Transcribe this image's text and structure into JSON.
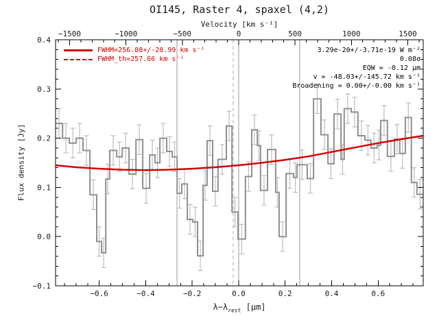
{
  "title": "OI145, Raster 4, spaxel (4,2)",
  "chart_data": {
    "type": "line",
    "style": "stepped histogram spectrum with model fit curve",
    "title": "OI145, Raster 4, spaxel (4,2)",
    "xlabel_parts": {
      "main": "λ−λ",
      "sub": "rest",
      "unit": " [μm]"
    },
    "top_xlabel": "Velocity [km s⁻¹]",
    "ylabel": "Flux density [Jy]",
    "xlim": [
      -0.788,
      0.794
    ],
    "ylim": [
      -0.1,
      0.4
    ],
    "x_ticks": [
      -0.6,
      -0.4,
      -0.2,
      0.0,
      0.2,
      0.4,
      0.6
    ],
    "x_tick_labels": [
      "−0.6",
      "−0.4",
      "−0.2",
      "0.0",
      "0.2",
      "0.4",
      "0.6"
    ],
    "x_minor_step": 0.05,
    "top_ticks_kms": [
      -1500,
      -1000,
      -500,
      0,
      500,
      1000,
      1500
    ],
    "top_tick_labels": [
      "−1500",
      "−1000",
      "−500",
      "0",
      "500",
      "1000",
      "1500"
    ],
    "top_minor_step_kms": 100,
    "kms_per_um": 2061.9,
    "y_ticks": [
      -0.1,
      0.0,
      0.1,
      0.2,
      0.3,
      0.4
    ],
    "y_tick_labels": [
      "−0.1",
      "0.0",
      "0.1",
      "0.2",
      "0.3",
      "0.4"
    ],
    "y_minor_step": 0.02,
    "grid": false,
    "legend_position": "top-left",
    "ref_lines_solid": [
      -0.265,
      0.0,
      0.263
    ],
    "ref_lines_dashed": [
      -0.023
    ],
    "histogram": {
      "bin_edges": [
        -0.788,
        -0.758,
        -0.729,
        -0.699,
        -0.67,
        -0.64,
        -0.611,
        -0.59,
        -0.572,
        -0.555,
        -0.525,
        -0.501,
        -0.472,
        -0.442,
        -0.413,
        -0.383,
        -0.36,
        -0.339,
        -0.31,
        -0.286,
        -0.265,
        -0.245,
        -0.221,
        -0.198,
        -0.177,
        -0.153,
        -0.136,
        -0.112,
        -0.089,
        -0.053,
        -0.029,
        -0.003,
        0.029,
        0.056,
        0.08,
        0.094,
        0.124,
        0.159,
        0.174,
        0.204,
        0.236,
        0.251,
        0.295,
        0.322,
        0.354,
        0.384,
        0.41,
        0.44,
        0.454,
        0.484,
        0.513,
        0.543,
        0.569,
        0.596,
        0.611,
        0.64,
        0.67,
        0.693,
        0.717,
        0.743,
        0.767,
        0.794
      ],
      "flux": [
        0.23,
        0.2,
        0.19,
        0.2,
        0.175,
        0.085,
        -0.01,
        -0.033,
        0.117,
        0.175,
        0.162,
        0.18,
        0.127,
        0.197,
        0.098,
        0.166,
        0.15,
        0.2,
        0.173,
        0.162,
        0.088,
        0.107,
        0.035,
        0.03,
        -0.039,
        0.104,
        0.195,
        0.092,
        0.157,
        0.225,
        0.05,
        -0.005,
        0.122,
        0.217,
        0.185,
        0.094,
        0.177,
        0.09,
        0.0,
        0.128,
        0.12,
        0.146,
        0.118,
        0.28,
        0.207,
        0.148,
        0.249,
        0.157,
        0.26,
        0.253,
        0.205,
        0.196,
        0.18,
        0.186,
        0.236,
        0.163,
        0.198,
        0.169,
        0.242,
        0.11,
        0.086
      ],
      "flux_err": 0.03
    },
    "model_curve": {
      "lambda": [
        -0.788,
        -0.7,
        -0.6,
        -0.5,
        -0.4,
        -0.3,
        -0.2,
        -0.1,
        0.0,
        0.1,
        0.2,
        0.3,
        0.4,
        0.5,
        0.6,
        0.7,
        0.794
      ],
      "flux": [
        0.145,
        0.141,
        0.138,
        0.136,
        0.135,
        0.136,
        0.138,
        0.141,
        0.145,
        0.15,
        0.156,
        0.163,
        0.172,
        0.181,
        0.19,
        0.198,
        0.205
      ]
    },
    "legend": [
      {
        "style": "solid",
        "label": "FWHM=256.88+/-28.99 km s⁻¹"
      },
      {
        "style": "dashed",
        "label": "FWHM_th=257.66 km s⁻¹"
      }
    ],
    "annotations": [
      "3.29e-20+/-3.71e-19 W m⁻²",
      "0.08σ",
      "EQW = -0.12 μm",
      "v = -48.03+/-145.72 km s⁻¹",
      "Broadening = 0.00+/-0.00 km s⁻¹"
    ],
    "colors": {
      "model": "#d40000",
      "histogram": "#8f8f8f",
      "error_bars": "#bcbcbc",
      "ref_lines": "#999999",
      "ref_lines_dashed": "#aaaaaa",
      "axis": "#000000",
      "background": "#ffffff"
    }
  }
}
